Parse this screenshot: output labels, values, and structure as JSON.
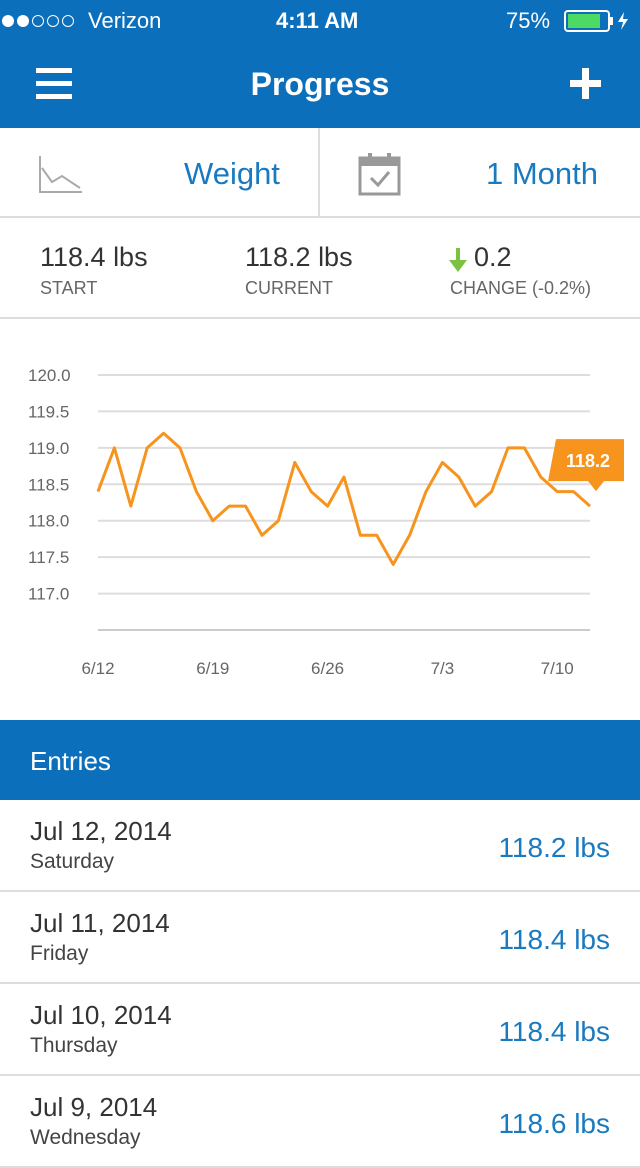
{
  "status_bar": {
    "carrier": "Verizon",
    "time": "4:11 AM",
    "battery": "75%"
  },
  "header": {
    "title": "Progress"
  },
  "selector": {
    "metric": "Weight",
    "range": "1 Month"
  },
  "summary": [
    {
      "value": "118.4 lbs",
      "label": "START"
    },
    {
      "value": "118.2 lbs",
      "label": "CURRENT"
    },
    {
      "value": "0.2",
      "label": "CHANGE (-0.2%)"
    }
  ],
  "chart_data": {
    "type": "line",
    "categories": [
      "6/12",
      null,
      null,
      null,
      null,
      null,
      null,
      "6/19",
      null,
      null,
      null,
      null,
      null,
      null,
      "6/26",
      null,
      null,
      null,
      null,
      null,
      null,
      "7/3",
      null,
      null,
      null,
      null,
      null,
      null,
      "7/10",
      null,
      null
    ],
    "series": [
      {
        "name": "Weight",
        "color": "#f7941d",
        "values": [
          118.4,
          119.0,
          118.2,
          119.0,
          119.2,
          119.0,
          118.4,
          118.0,
          118.2,
          118.2,
          117.8,
          118.0,
          118.8,
          118.4,
          118.2,
          118.6,
          117.8,
          117.8,
          117.4,
          117.8,
          118.4,
          118.8,
          118.6,
          118.2,
          118.4,
          119.0,
          119.0,
          118.6,
          118.4,
          118.4,
          118.2
        ]
      }
    ],
    "ylim": [
      116.5,
      120.0
    ],
    "yticks": [
      {
        "value": 117,
        "label": "117.0"
      },
      {
        "value": 117.5,
        "label": "117.5"
      },
      {
        "value": 118,
        "label": "118.0"
      },
      {
        "value": 118.5,
        "label": "118.5"
      },
      {
        "value": 119,
        "label": "119.0"
      },
      {
        "value": 119.5,
        "label": "119.5"
      },
      {
        "value": 120,
        "label": "120.0"
      }
    ],
    "grid": true,
    "callout": 118.2
  },
  "entries": {
    "title": "Entries",
    "rows": [
      {
        "date": "Jul 12, 2014",
        "day": "Saturday",
        "value": "118.2 lbs"
      },
      {
        "date": "Jul 11, 2014",
        "day": "Friday",
        "value": "118.4 lbs"
      },
      {
        "date": "Jul 10, 2014",
        "day": "Thursday",
        "value": "118.4 lbs"
      },
      {
        "date": "Jul 9, 2014",
        "day": "Wednesday",
        "value": "118.6 lbs"
      }
    ]
  }
}
